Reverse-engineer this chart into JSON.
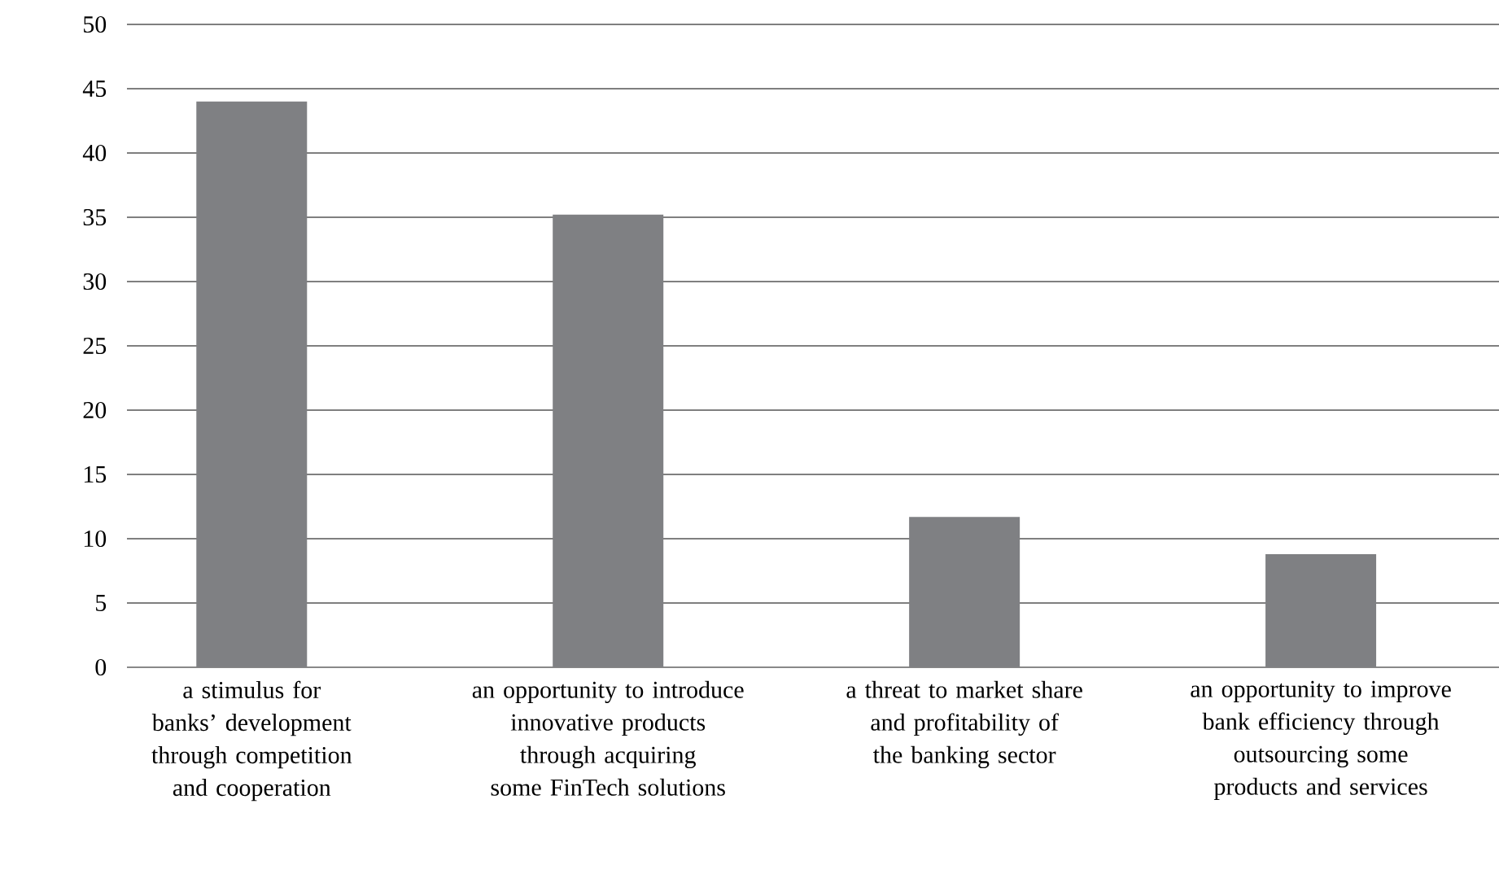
{
  "chart_data": {
    "type": "bar",
    "categories": [
      "a stimulus for banks’ development through competition and cooperation",
      "an opportunity to introduce innovative products through acquiring some FinTech solutions",
      "a threat to market share and profitability of the banking sector",
      "an opportunity to improve bank efficiency through outsourcing some products and services"
    ],
    "values": [
      44,
      35.2,
      11.7,
      8.8
    ],
    "color": "#7f8083",
    "ylim": [
      0,
      50
    ],
    "yticks": [
      0,
      5,
      10,
      15,
      20,
      25,
      30,
      35,
      40,
      45,
      50
    ],
    "grid": "y"
  }
}
